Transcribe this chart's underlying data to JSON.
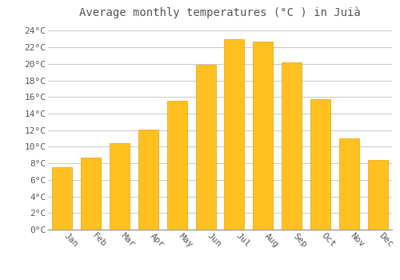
{
  "title": "Average monthly temperatures (°C ) in Juià",
  "months": [
    "Jan",
    "Feb",
    "Mar",
    "Apr",
    "May",
    "Jun",
    "Jul",
    "Aug",
    "Sep",
    "Oct",
    "Nov",
    "Dec"
  ],
  "values": [
    7.5,
    8.7,
    10.4,
    12.1,
    15.5,
    19.9,
    23.0,
    22.7,
    20.2,
    15.7,
    11.0,
    8.4
  ],
  "bar_color": "#FFC020",
  "bar_edge_color": "#E8A000",
  "background_color": "#FFFFFF",
  "grid_color": "#CCCCCC",
  "text_color": "#555555",
  "ylim": [
    0,
    25
  ],
  "yticks": [
    0,
    2,
    4,
    6,
    8,
    10,
    12,
    14,
    16,
    18,
    20,
    22,
    24
  ],
  "title_fontsize": 10,
  "tick_fontsize": 8
}
